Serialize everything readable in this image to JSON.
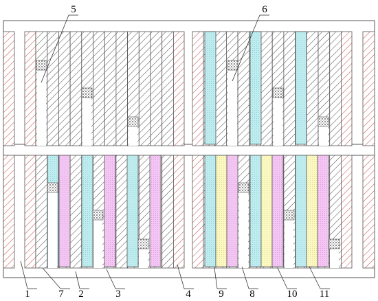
{
  "callouts": [
    "1",
    "2",
    "3",
    "4",
    "5",
    "6",
    "7",
    "8",
    "9",
    "10",
    "11"
  ],
  "colors": {
    "outline": "#555555",
    "grey_hatch": "#555555",
    "red_hatch": "#c8504a",
    "cyan_fill": "#bfecef",
    "magenta_fill": "#f3c6f3",
    "yellow_fill": "#fcf8c2",
    "plug": "#9a9a9a",
    "background": "#ffffff"
  }
}
